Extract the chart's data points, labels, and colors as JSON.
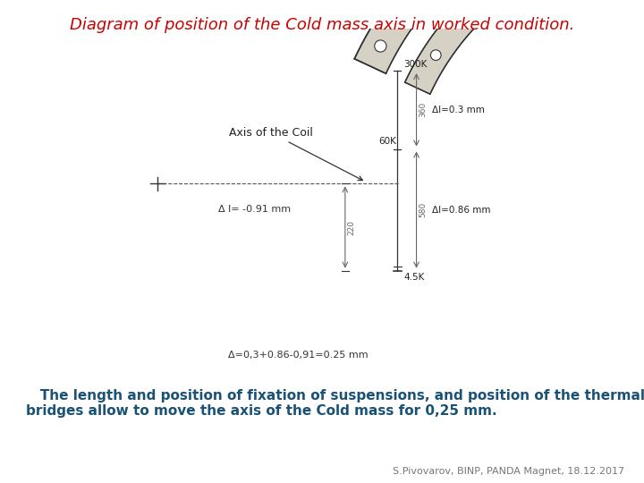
{
  "title": "Diagram of position of the Cold mass axis in worked condition.",
  "title_color": "#cc0000",
  "title_fontsize": 13,
  "body_text": "   The length and position of fixation of suspensions, and position of the thermal\nbridges allow to move the axis of the Cold mass for 0,25 mm.",
  "body_color": "#1a5276",
  "body_fontsize": 11,
  "footer_text": "S.Pivovarov, BINP, PANDA Magnet, 18.12.2017",
  "footer_color": "#777777",
  "footer_fontsize": 8,
  "bg_color": "#e8e5d8",
  "fig_bg": "#ffffff",
  "label_300K": "300K",
  "label_60K": "60K",
  "label_4_5K": "4.5K",
  "label_360": "360",
  "label_560": "580",
  "label_220": "220",
  "label_dl_03": "Δl=0.3 mm",
  "label_dl_086": "Δl=0.86 mm",
  "label_dl_091": "Δ l= -0.91 mm",
  "label_delta": "Δ=0,3+0.86-0,91=0.25 mm",
  "label_axis_coil": "Axis of the Coil",
  "dark": "#333333",
  "mid": "#666666"
}
